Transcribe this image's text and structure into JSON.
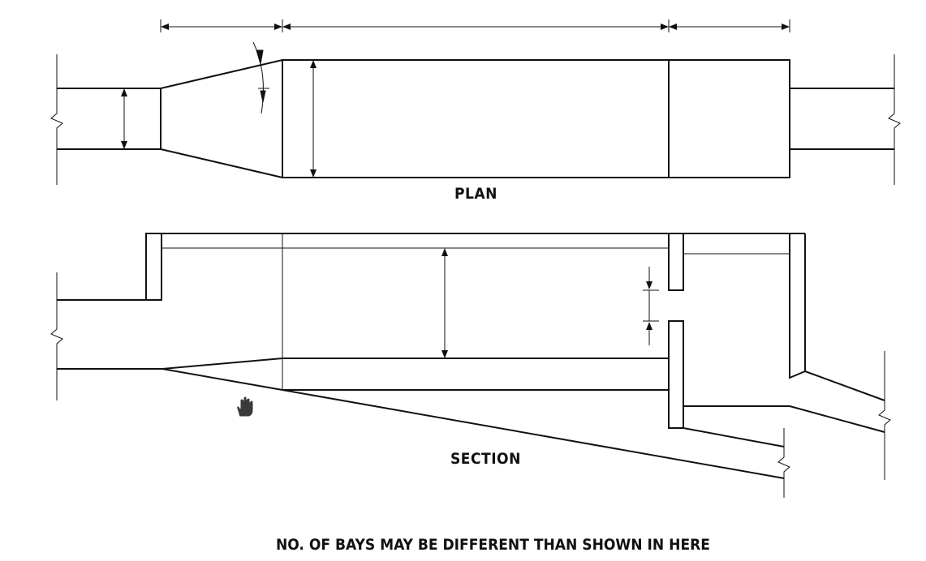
{
  "labels": {
    "plan": "PLAN",
    "section": "SECTION",
    "note": "NO. OF BAYS MAY BE DIFFERENT THAN SHOWN IN HERE"
  },
  "cursor": {
    "icon": "hand-pointer-icon"
  },
  "colors": {
    "line": "#111111",
    "background": "#ffffff"
  }
}
